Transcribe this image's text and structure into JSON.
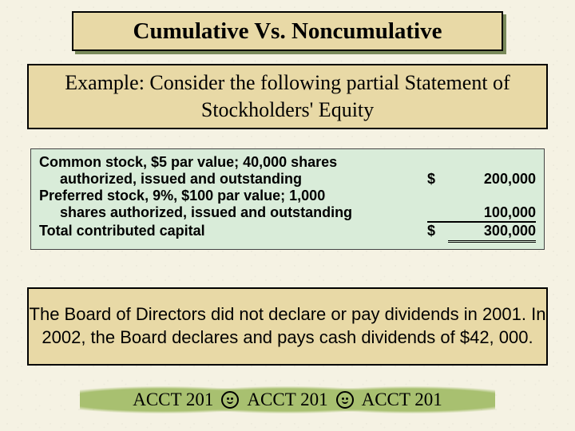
{
  "title": "Cumulative Vs. Noncumulative",
  "example": "Example:  Consider the following partial Statement of Stockholders' Equity",
  "table": {
    "background": "#d9ecd9",
    "fontsize": 18,
    "rows": [
      {
        "desc_line1": "Common stock, $5 par value; 40,000 shares",
        "desc_line2": "authorized, issued and outstanding",
        "currency": "$",
        "amount": "200,000",
        "rule": "none"
      },
      {
        "desc_line1": "Preferred stock, 9%, $100 par value; 1,000",
        "desc_line2": "shares authorized, issued and outstanding",
        "currency": "",
        "amount": "100,000",
        "rule": "single"
      },
      {
        "desc_line1": "Total contributed capital",
        "desc_line2": "",
        "currency": "$",
        "amount": "300,000",
        "rule": "double"
      }
    ]
  },
  "note": "The Board of Directors did not declare or pay dividends in 2001.  In 2002, the Board declares and pays cash dividends of $42, 000.",
  "footer": {
    "label": "ACCT 201"
  },
  "colors": {
    "box_bg": "#e8d9a6",
    "page_bg": "#f5f2e3",
    "shadow": "#7a8a5a",
    "footer_blob": "#a8c070"
  }
}
